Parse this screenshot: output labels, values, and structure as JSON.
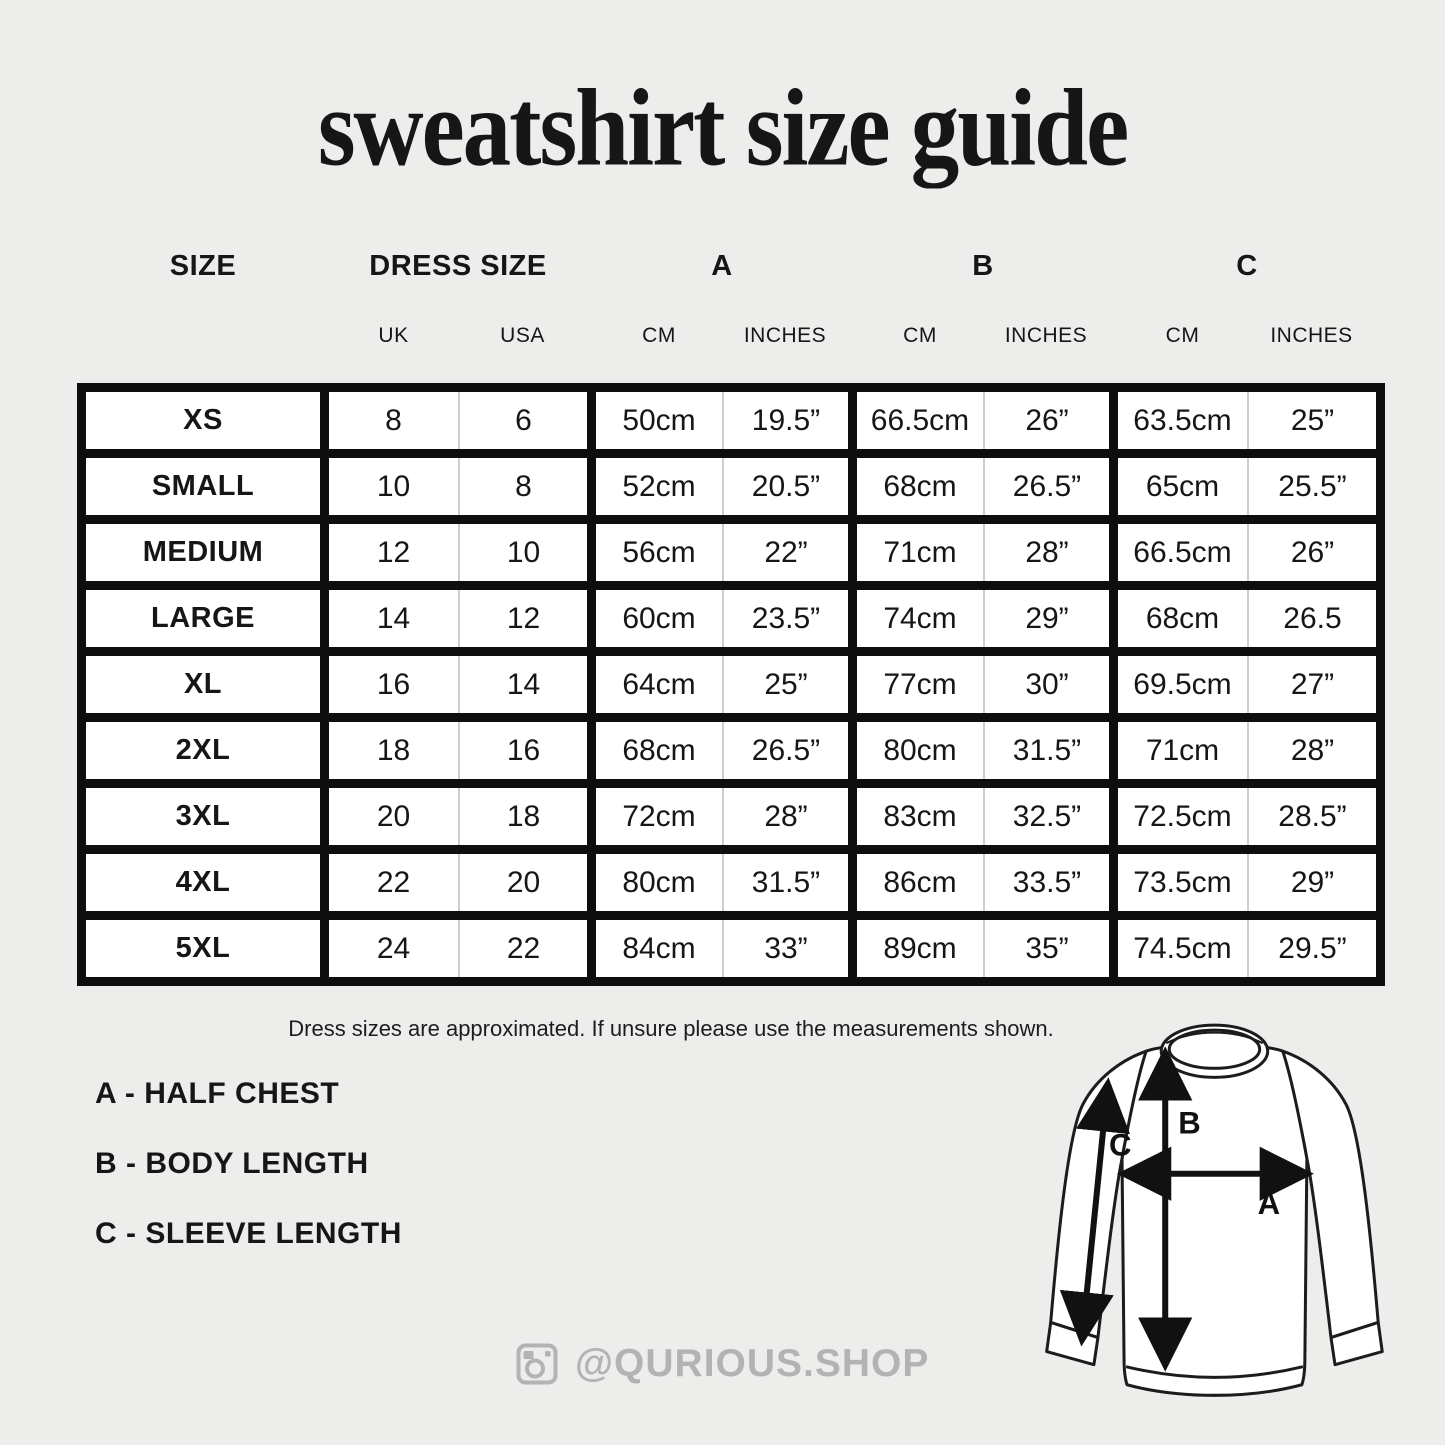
{
  "title": "sweatshirt size guide",
  "table": {
    "columns": [
      {
        "key": "size",
        "header": "SIZE",
        "subs": []
      },
      {
        "key": "dress",
        "header": "DRESS SIZE",
        "subs": [
          "UK",
          "USA"
        ]
      },
      {
        "key": "a",
        "header": "A",
        "subs": [
          "CM",
          "INCHES"
        ]
      },
      {
        "key": "b",
        "header": "B",
        "subs": [
          "CM",
          "INCHES"
        ]
      },
      {
        "key": "c",
        "header": "C",
        "subs": [
          "CM",
          "INCHES"
        ]
      }
    ],
    "rows": [
      {
        "size": "XS",
        "cells": [
          [
            "8",
            "6"
          ],
          [
            "50cm",
            "19.5”"
          ],
          [
            "66.5cm",
            "26”"
          ],
          [
            "63.5cm",
            "25”"
          ]
        ]
      },
      {
        "size": "SMALL",
        "cells": [
          [
            "10",
            "8"
          ],
          [
            "52cm",
            "20.5”"
          ],
          [
            "68cm",
            "26.5”"
          ],
          [
            "65cm",
            "25.5”"
          ]
        ]
      },
      {
        "size": "MEDIUM",
        "cells": [
          [
            "12",
            "10"
          ],
          [
            "56cm",
            "22”"
          ],
          [
            "71cm",
            "28”"
          ],
          [
            "66.5cm",
            "26”"
          ]
        ]
      },
      {
        "size": "LARGE",
        "cells": [
          [
            "14",
            "12"
          ],
          [
            "60cm",
            "23.5”"
          ],
          [
            "74cm",
            "29”"
          ],
          [
            "68cm",
            "26.5"
          ]
        ]
      },
      {
        "size": "XL",
        "cells": [
          [
            "16",
            "14"
          ],
          [
            "64cm",
            "25”"
          ],
          [
            "77cm",
            "30”"
          ],
          [
            "69.5cm",
            "27”"
          ]
        ]
      },
      {
        "size": "2XL",
        "cells": [
          [
            "18",
            "16"
          ],
          [
            "68cm",
            "26.5”"
          ],
          [
            "80cm",
            "31.5”"
          ],
          [
            "71cm",
            "28”"
          ]
        ]
      },
      {
        "size": "3XL",
        "cells": [
          [
            "20",
            "18"
          ],
          [
            "72cm",
            "28”"
          ],
          [
            "83cm",
            "32.5”"
          ],
          [
            "72.5cm",
            "28.5”"
          ]
        ]
      },
      {
        "size": "4XL",
        "cells": [
          [
            "22",
            "20"
          ],
          [
            "80cm",
            "31.5”"
          ],
          [
            "86cm",
            "33.5”"
          ],
          [
            "73.5cm",
            "29”"
          ]
        ]
      },
      {
        "size": "5XL",
        "cells": [
          [
            "24",
            "22"
          ],
          [
            "84cm",
            "33”"
          ],
          [
            "89cm",
            "35”"
          ],
          [
            "74.5cm",
            "29.5”"
          ]
        ]
      }
    ]
  },
  "note": "Dress sizes are approximated. If unsure please use the measurements shown.",
  "legend": [
    "A - HALF CHEST",
    "B - BODY LENGTH",
    "C - SLEEVE LENGTH"
  ],
  "footer": {
    "icon": "instagram-icon",
    "handle": "@QURIOUS.SHOP"
  },
  "diagram": {
    "a_label": "A",
    "b_label": "B",
    "c_label": "C"
  },
  "colors": {
    "background": "#ededec",
    "table_border": "#0e0e0e",
    "cell_background": "#ffffff",
    "cell_divider": "#cdcdcd",
    "text": "#161616",
    "footer_gray": "#b3b3b3"
  }
}
